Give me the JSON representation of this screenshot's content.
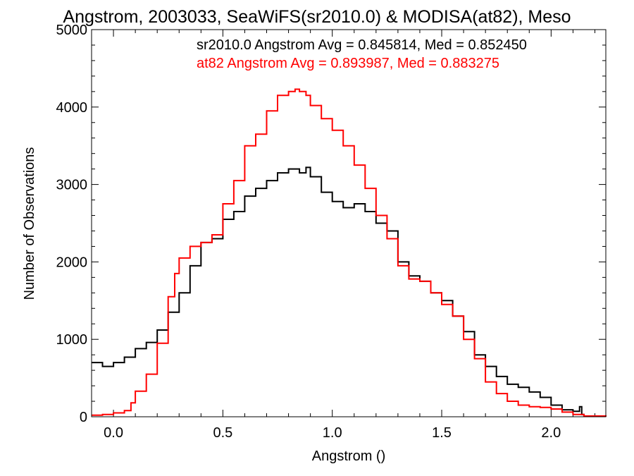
{
  "chart_data": {
    "type": "line",
    "title": "Angstrom, 2003033, SeaWiFS(sr2010.0) & MODISA(at82), Meso",
    "xlabel": "Angstrom ()",
    "ylabel": "Number of Observations",
    "xlim": [
      -0.1,
      2.25
    ],
    "ylim": [
      0,
      5000
    ],
    "x_ticks": [
      0.0,
      0.5,
      1.0,
      1.5,
      2.0
    ],
    "x_tick_labels": [
      "0.0",
      "0.5",
      "1.0",
      "1.5",
      "2.0"
    ],
    "y_ticks": [
      0,
      1000,
      2000,
      3000,
      4000,
      5000
    ],
    "y_tick_labels": [
      "0",
      "1000",
      "2000",
      "3000",
      "4000",
      "5000"
    ],
    "grid": false,
    "step": true,
    "legend_position": "top-right",
    "annotations": [
      {
        "text": "sr2010.0 Angstrom Avg = 0.845814, Med = 0.852450",
        "color": "#000000"
      },
      {
        "text": "at82 Angstrom Avg = 0.893987, Med = 0.883275",
        "color": "#ff0000"
      }
    ],
    "series": [
      {
        "color": "#000000",
        "x": [
          -0.1,
          -0.05,
          0.0,
          0.05,
          0.1,
          0.15,
          0.2,
          0.25,
          0.3,
          0.35,
          0.4,
          0.45,
          0.5,
          0.55,
          0.6,
          0.65,
          0.7,
          0.75,
          0.8,
          0.85,
          0.88,
          0.9,
          0.95,
          1.0,
          1.05,
          1.1,
          1.15,
          1.2,
          1.25,
          1.3,
          1.35,
          1.4,
          1.45,
          1.5,
          1.55,
          1.6,
          1.65,
          1.7,
          1.75,
          1.8,
          1.85,
          1.9,
          1.95,
          2.0,
          2.05,
          2.1,
          2.13,
          2.14,
          2.15,
          2.25
        ],
        "y": [
          700,
          650,
          700,
          770,
          880,
          960,
          1120,
          1350,
          1600,
          1950,
          2250,
          2300,
          2550,
          2650,
          2850,
          2950,
          3050,
          3150,
          3200,
          3150,
          3220,
          3100,
          2900,
          2780,
          2700,
          2750,
          2650,
          2500,
          2400,
          2000,
          1820,
          1750,
          1600,
          1500,
          1300,
          1100,
          800,
          650,
          520,
          420,
          380,
          320,
          250,
          150,
          90,
          70,
          130,
          30,
          5,
          0
        ]
      },
      {
        "color": "#ff0000",
        "x": [
          -0.1,
          -0.05,
          0.0,
          0.05,
          0.08,
          0.1,
          0.15,
          0.2,
          0.25,
          0.28,
          0.3,
          0.35,
          0.4,
          0.45,
          0.5,
          0.55,
          0.6,
          0.65,
          0.7,
          0.75,
          0.8,
          0.83,
          0.85,
          0.88,
          0.9,
          0.95,
          1.0,
          1.05,
          1.1,
          1.15,
          1.2,
          1.25,
          1.3,
          1.35,
          1.4,
          1.45,
          1.5,
          1.55,
          1.6,
          1.65,
          1.7,
          1.75,
          1.8,
          1.85,
          1.9,
          1.95,
          2.0,
          2.05,
          2.1,
          2.15,
          2.25
        ],
        "y": [
          20,
          30,
          50,
          80,
          180,
          330,
          550,
          950,
          1550,
          1850,
          2050,
          2200,
          2250,
          2350,
          2750,
          3050,
          3500,
          3650,
          3950,
          4150,
          4200,
          4230,
          4200,
          4150,
          4020,
          3850,
          3700,
          3500,
          3250,
          2950,
          2600,
          2300,
          1950,
          1780,
          1750,
          1600,
          1450,
          1300,
          1000,
          750,
          450,
          300,
          200,
          150,
          130,
          120,
          100,
          60,
          30,
          10,
          0
        ]
      }
    ]
  }
}
